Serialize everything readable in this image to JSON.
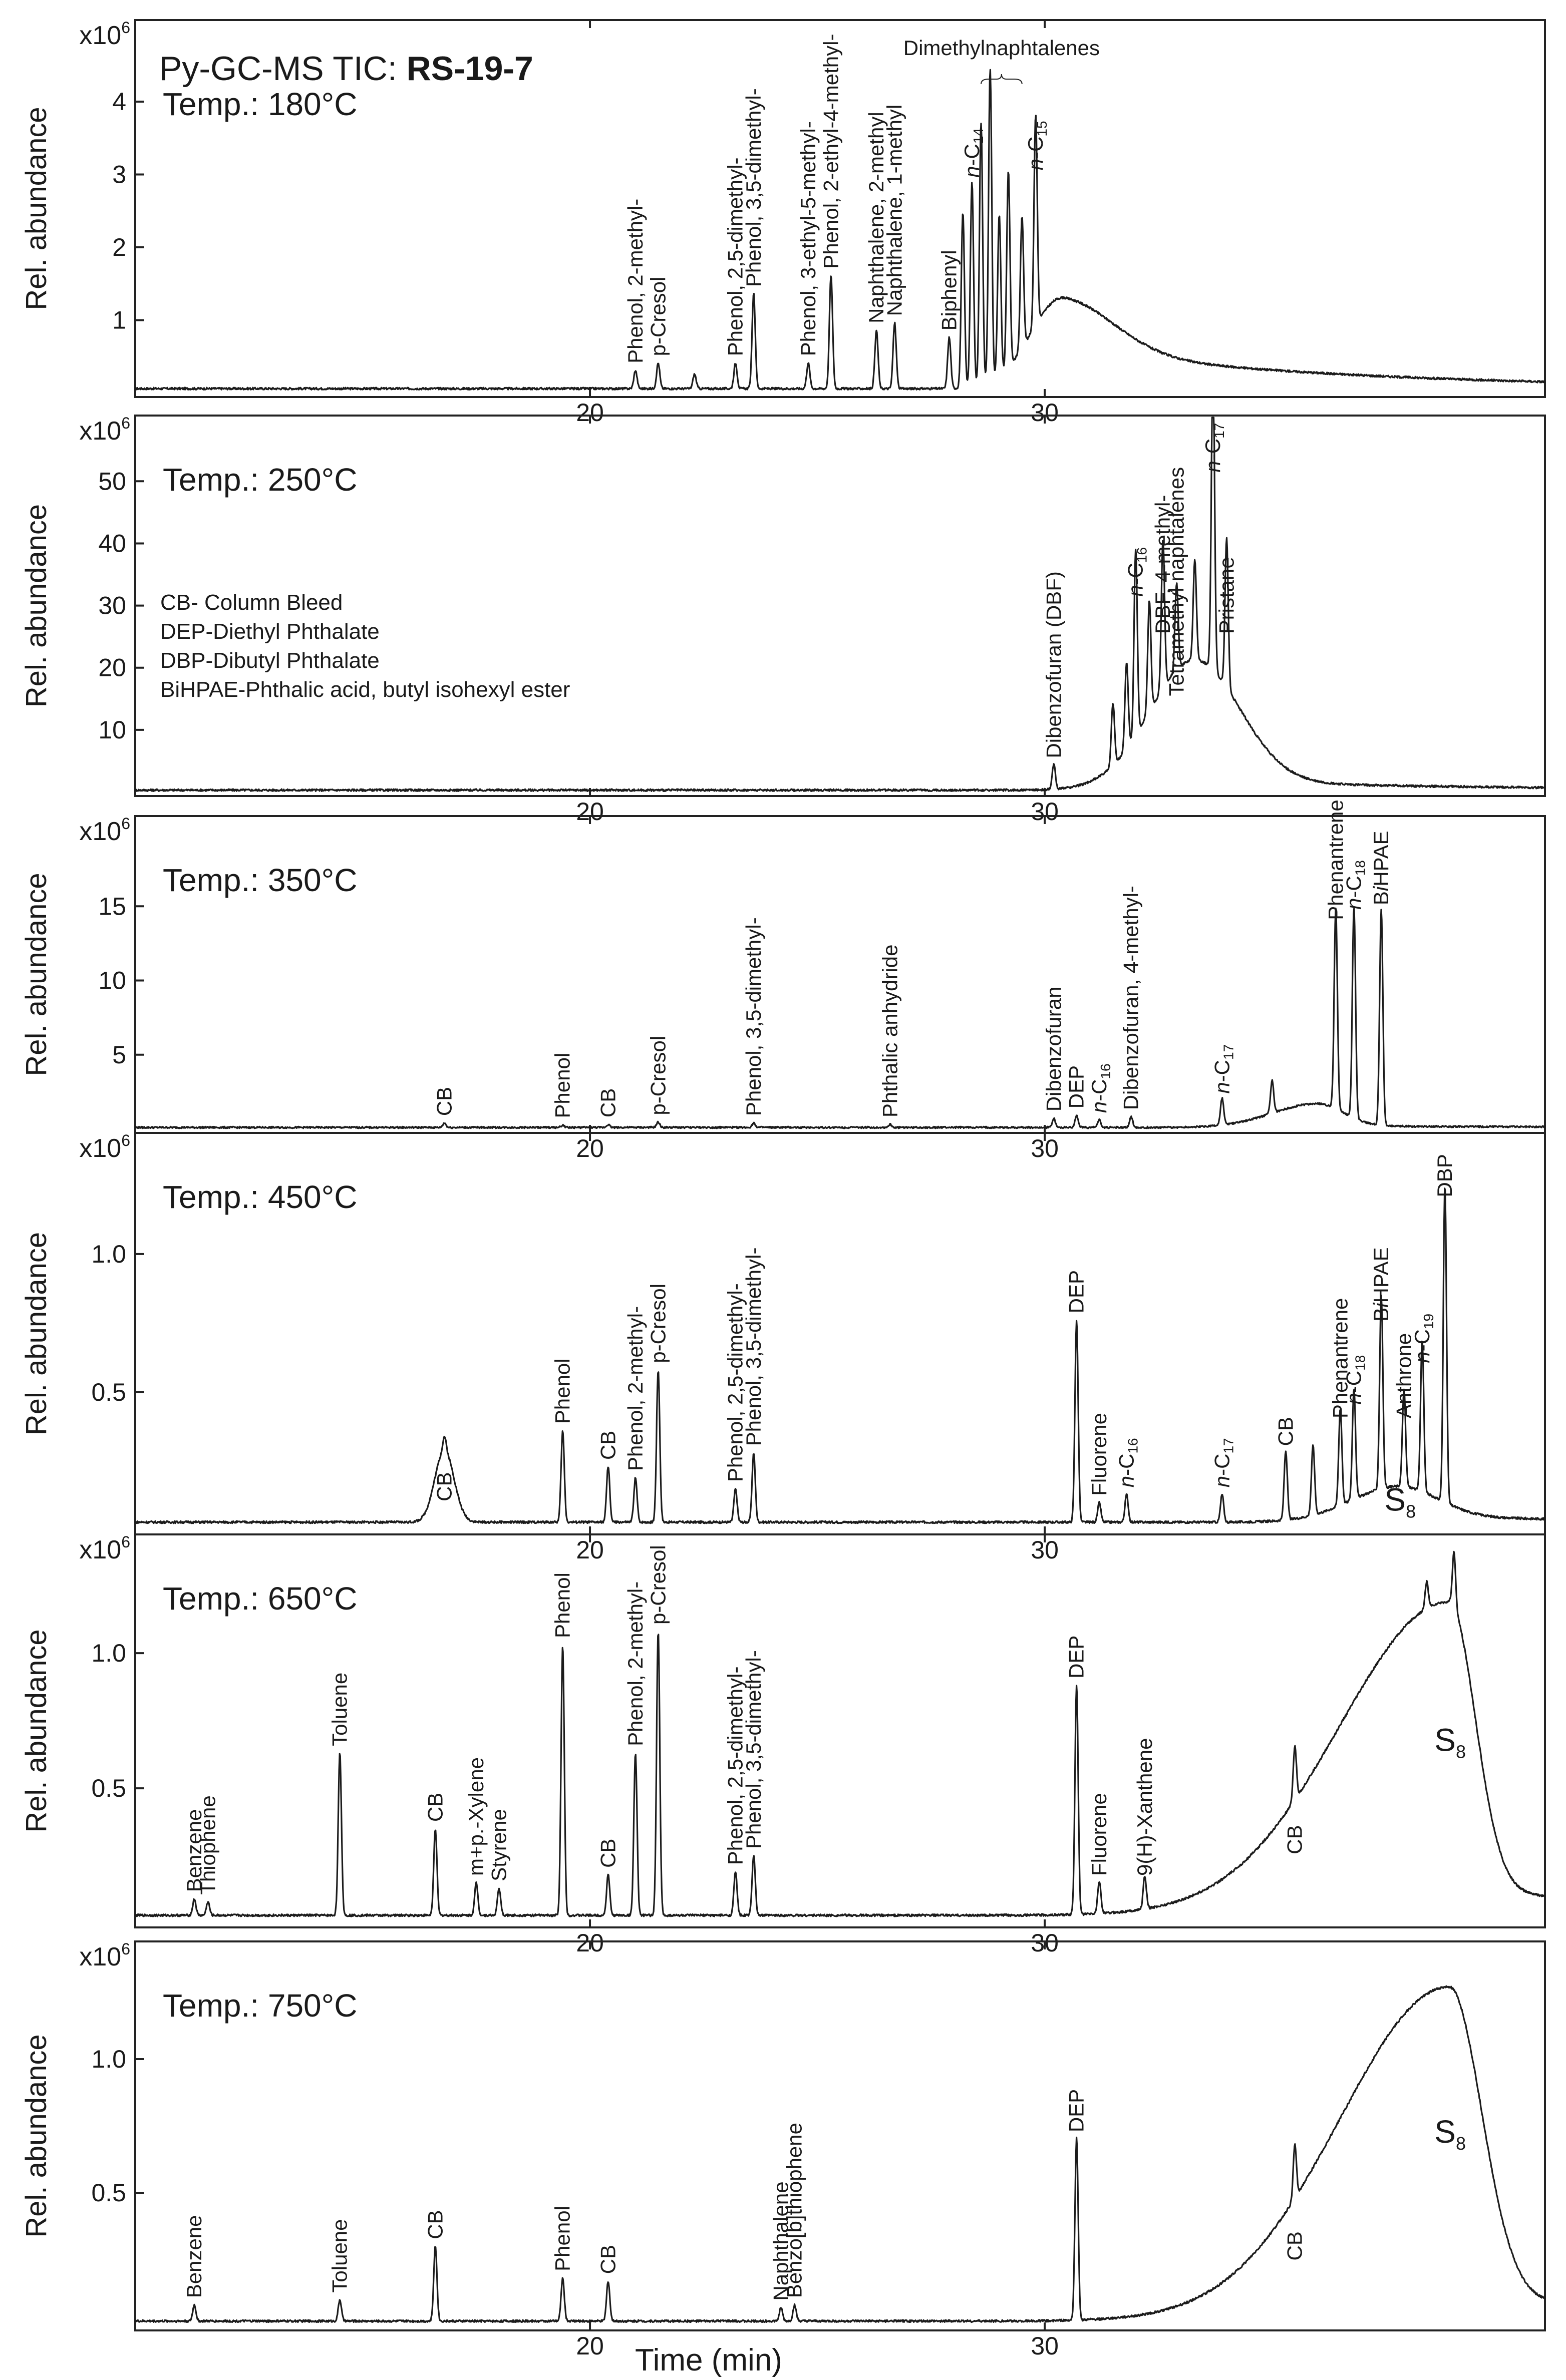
{
  "title": {
    "prefix": "Py-GC-MS TIC: ",
    "sample": "RS-19-7"
  },
  "x_axis": {
    "label": "Time (min)",
    "range": [
      10,
      41
    ],
    "ticks": [
      20,
      30
    ]
  },
  "y_axis_label": "Rel. abundance",
  "legend": [
    "CB- Column Bleed",
    "DEP-Diethyl Phthalate",
    "DBP-Dibutyl Phthalate",
    "BiHPAE-Phthalic acid, butyl isohexyl ester"
  ],
  "chart_data": [
    {
      "type": "line",
      "temperature": "Temp.: 180°C",
      "multiplier": "x10",
      "multiplier_exp": "6",
      "ylim": [
        0,
        4.9
      ],
      "yticks": [
        "1",
        "2",
        "3",
        "4"
      ],
      "baseline": 0.06,
      "hump": {
        "center": 30.4,
        "height": 1.25,
        "rise": 1.0,
        "fall": 1.6,
        "tail": 0.55
      },
      "peaks": [
        {
          "rt": 21.5,
          "h": 0.35,
          "label": "p-Cresol"
        },
        {
          "rt": 21.0,
          "h": 0.25,
          "label": "Phenol, 2-methyl-"
        },
        {
          "rt": 22.3,
          "h": 0.2
        },
        {
          "rt": 23.2,
          "h": 0.35,
          "label": "Phenol, 2,5-dimethyl-"
        },
        {
          "rt": 23.6,
          "h": 1.3,
          "label": "Phenol, 3,5-dimethyl-"
        },
        {
          "rt": 24.8,
          "h": 0.35,
          "label": "Phenol, 3-ethyl-5-methyl-"
        },
        {
          "rt": 25.3,
          "h": 1.55,
          "label": "Phenol, 2-ethyl-4-methyl-"
        },
        {
          "rt": 26.3,
          "h": 0.8,
          "label": "Naphthalene, 2-methyl"
        },
        {
          "rt": 26.7,
          "h": 0.9,
          "label": "Naphthalene, 1-methyl"
        },
        {
          "rt": 27.9,
          "h": 0.7,
          "label": "Biphenyl"
        },
        {
          "rt": 28.2,
          "h": 2.4
        },
        {
          "rt": 28.4,
          "h": 2.8,
          "label": "n-C14"
        },
        {
          "rt": 28.6,
          "h": 3.6
        },
        {
          "rt": 28.8,
          "h": 4.3
        },
        {
          "rt": 29.0,
          "h": 2.2
        },
        {
          "rt": 29.2,
          "h": 2.7
        },
        {
          "rt": 29.5,
          "h": 1.8
        },
        {
          "rt": 29.8,
          "h": 2.9,
          "label": "n-C15"
        }
      ],
      "group_label": "Dimethylnaphtalenes"
    },
    {
      "type": "line",
      "temperature": "Temp.: 250°C",
      "multiplier": "x10",
      "multiplier_exp": "6",
      "ylim": [
        0,
        58
      ],
      "yticks": [
        "10",
        "20",
        "30",
        "40",
        "50"
      ],
      "baseline": 0.3,
      "hump": {
        "center": 33.3,
        "height": 21,
        "rise": 1.4,
        "fall": 1.4,
        "tail": 1.5
      },
      "peaks": [
        {
          "rt": 30.2,
          "h": 4,
          "label": "Dibenzofuran (DBF)"
        },
        {
          "rt": 31.5,
          "h": 10
        },
        {
          "rt": 31.8,
          "h": 14
        },
        {
          "rt": 32.0,
          "h": 30,
          "label": "n-C16"
        },
        {
          "rt": 32.3,
          "h": 18
        },
        {
          "rt": 32.6,
          "h": 24,
          "label": "DBF, 4-methyl-"
        },
        {
          "rt": 32.9,
          "h": 14,
          "label": "Tetramethyl naphtalenes"
        },
        {
          "rt": 33.3,
          "h": 16
        },
        {
          "rt": 33.7,
          "h": 50,
          "label": "n-C17"
        },
        {
          "rt": 34.0,
          "h": 24,
          "label": "Pristane"
        }
      ]
    },
    {
      "type": "line",
      "temperature": "Temp.: 350°C",
      "multiplier": "x10",
      "multiplier_exp": "6",
      "ylim": [
        0,
        20
      ],
      "yticks": [
        "5",
        "10",
        "15"
      ],
      "baseline": 0.1,
      "hump": {
        "center": 36.0,
        "height": 1.6,
        "rise": 1.4,
        "fall": 0.8,
        "tail": 0.1
      },
      "peaks": [
        {
          "rt": 16.8,
          "h": 0.3,
          "label": "CB"
        },
        {
          "rt": 19.4,
          "h": 0.15,
          "label": "Phenol"
        },
        {
          "rt": 20.4,
          "h": 0.2,
          "label": "CB"
        },
        {
          "rt": 21.5,
          "h": 0.35,
          "label": "p-Cresol"
        },
        {
          "rt": 23.6,
          "h": 0.3,
          "label": "Phenol, 3,5-dimethyl-"
        },
        {
          "rt": 26.6,
          "h": 0.2,
          "label": "Phthalic anhydride"
        },
        {
          "rt": 30.2,
          "h": 0.6,
          "label": "Dibenzofuran"
        },
        {
          "rt": 30.7,
          "h": 0.8,
          "label": "DEP"
        },
        {
          "rt": 31.2,
          "h": 0.5,
          "label": "n-C16"
        },
        {
          "rt": 31.9,
          "h": 0.7,
          "label": "Dibenzofuran, 4-methyl-"
        },
        {
          "rt": 33.9,
          "h": 1.8,
          "label": "n-C17"
        },
        {
          "rt": 35.0,
          "h": 2.2
        },
        {
          "rt": 36.4,
          "h": 13.5,
          "label": "Phenantrene"
        },
        {
          "rt": 36.8,
          "h": 14.2,
          "label": "n-C18"
        },
        {
          "rt": 37.4,
          "h": 14.5,
          "label": "BiHPAE"
        }
      ]
    },
    {
      "type": "line",
      "temperature": "Temp.: 450°C",
      "multiplier": "x10",
      "multiplier_exp": "6",
      "ylim": [
        0,
        1.38
      ],
      "yticks": [
        "0.5",
        "1.0"
      ],
      "baseline": 0.03,
      "hump": {
        "center": 37.8,
        "height": 0.13,
        "rise": 1.5,
        "fall": 1.2,
        "tail": 0.02
      },
      "hump2": {
        "center": 16.8,
        "height": 0.26,
        "width": 0.3
      },
      "peaks": [
        {
          "rt": 16.8,
          "h": 0.05,
          "label": "CB"
        },
        {
          "rt": 19.4,
          "h": 0.33,
          "label": "Phenol"
        },
        {
          "rt": 20.4,
          "h": 0.2,
          "label": "CB"
        },
        {
          "rt": 21.0,
          "h": 0.16,
          "label": "Phenol, 2-methyl-"
        },
        {
          "rt": 21.5,
          "h": 0.55,
          "label": "p-Cresol"
        },
        {
          "rt": 23.2,
          "h": 0.12,
          "label": "Phenol, 2,5-dimethyl-"
        },
        {
          "rt": 23.6,
          "h": 0.25,
          "label": "Phenol, 3,5-dimethyl-"
        },
        {
          "rt": 30.7,
          "h": 0.73,
          "label": "DEP"
        },
        {
          "rt": 31.2,
          "h": 0.07,
          "label": "Fluorene"
        },
        {
          "rt": 31.8,
          "h": 0.1,
          "label": "n-C16"
        },
        {
          "rt": 33.9,
          "h": 0.1,
          "label": "n-C17"
        },
        {
          "rt": 35.3,
          "h": 0.25,
          "label": "CB"
        },
        {
          "rt": 35.9,
          "h": 0.25
        },
        {
          "rt": 36.5,
          "h": 0.35,
          "label": "Phenantrene"
        },
        {
          "rt": 36.8,
          "h": 0.4,
          "label": "n-C18"
        },
        {
          "rt": 37.4,
          "h": 0.7,
          "label": "BiHPAE"
        },
        {
          "rt": 37.9,
          "h": 0.35,
          "label": "Anthrone"
        },
        {
          "rt": 38.3,
          "h": 0.55,
          "label": "n-C19"
        },
        {
          "rt": 38.8,
          "h": 1.15,
          "label": "DBP"
        }
      ],
      "hump_label": "S8"
    },
    {
      "type": "line",
      "temperature": "Temp.: 650°C",
      "multiplier": "x10",
      "multiplier_exp": "6",
      "ylim": [
        0,
        1.38
      ],
      "yticks": [
        "0.5",
        "1.0"
      ],
      "baseline": 0.03,
      "hump": {
        "center": 38.9,
        "height": 1.16,
        "rise": 3.4,
        "fall": 0.8,
        "tail": 0.1
      },
      "peaks": [
        {
          "rt": 11.3,
          "h": 0.06,
          "label": "Benzene"
        },
        {
          "rt": 11.6,
          "h": 0.05,
          "label": "Thiophene"
        },
        {
          "rt": 14.5,
          "h": 0.6,
          "label": "Toluene"
        },
        {
          "rt": 16.6,
          "h": 0.32,
          "label": "CB"
        },
        {
          "rt": 17.5,
          "h": 0.12,
          "label": "m+p.-Xylene"
        },
        {
          "rt": 18.0,
          "h": 0.1,
          "label": "Styrene"
        },
        {
          "rt": 19.4,
          "h": 1.0,
          "label": "Phenol"
        },
        {
          "rt": 20.4,
          "h": 0.15,
          "label": "CB"
        },
        {
          "rt": 21.0,
          "h": 0.6,
          "label": "Phenol, 2-methyl-"
        },
        {
          "rt": 21.5,
          "h": 1.05,
          "label": "p-Cresol"
        },
        {
          "rt": 23.2,
          "h": 0.16,
          "label": "Phenol, 2,5-dimethyl-"
        },
        {
          "rt": 23.6,
          "h": 0.22,
          "label": "Phenol, 3,5-dimethyl-"
        },
        {
          "rt": 30.7,
          "h": 0.85,
          "label": "DEP"
        },
        {
          "rt": 31.2,
          "h": 0.12,
          "label": "Fluorene"
        },
        {
          "rt": 32.2,
          "h": 0.12,
          "label": "9(H)-Xanthene"
        },
        {
          "rt": 35.5,
          "h": 0.2,
          "label": "CB"
        },
        {
          "rt": 38.4,
          "h": 0.1
        },
        {
          "rt": 39.0,
          "h": 0.2
        }
      ],
      "hump_label": "S8"
    },
    {
      "type": "line",
      "temperature": "Temp.: 750°C",
      "multiplier": "x10",
      "multiplier_exp": "6",
      "ylim": [
        0,
        1.38
      ],
      "yticks": [
        "0.5",
        "1.0"
      ],
      "baseline": 0.02,
      "hump": {
        "center": 38.9,
        "height": 1.25,
        "rise": 3.4,
        "fall": 1.0,
        "tail": 0.1
      },
      "peaks": [
        {
          "rt": 11.3,
          "h": 0.06,
          "label": "Benzene"
        },
        {
          "rt": 14.5,
          "h": 0.08,
          "label": "Toluene"
        },
        {
          "rt": 16.6,
          "h": 0.28,
          "label": "CB"
        },
        {
          "rt": 19.4,
          "h": 0.16,
          "label": "Phenol"
        },
        {
          "rt": 20.4,
          "h": 0.15,
          "label": "CB"
        },
        {
          "rt": 24.2,
          "h": 0.05,
          "label": "Naphthalene"
        },
        {
          "rt": 24.5,
          "h": 0.06,
          "label": "Benzo[b]thiophene"
        },
        {
          "rt": 30.7,
          "h": 0.68,
          "label": "DEP"
        },
        {
          "rt": 35.5,
          "h": 0.2,
          "label": "CB"
        }
      ],
      "hump_label": "S8"
    }
  ]
}
